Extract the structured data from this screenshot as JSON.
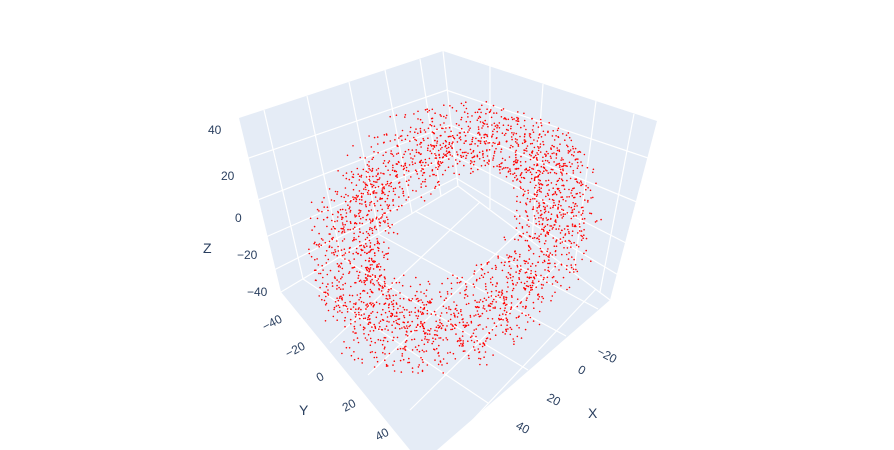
{
  "chart_data": {
    "type": "scatter",
    "title": "",
    "mode": "3d-markers",
    "marker_color": "#ff0000",
    "background_color": "#e5ecf6",
    "grid": true,
    "point_count_shown": 2600,
    "shape": "hollow ring / torus-like point cloud",
    "axes": {
      "x": {
        "title": "X",
        "ticks": [
          "−20",
          "0",
          "20",
          "40"
        ],
        "range": [
          -35,
          55
        ]
      },
      "y": {
        "title": "Y",
        "ticks": [
          "−40",
          "−20",
          "0",
          "20",
          "40"
        ],
        "range": [
          -50,
          50
        ]
      },
      "z": {
        "title": "Z",
        "ticks": [
          "40",
          "20",
          "0",
          "−20",
          "−40"
        ],
        "range": [
          -50,
          45
        ]
      }
    }
  }
}
